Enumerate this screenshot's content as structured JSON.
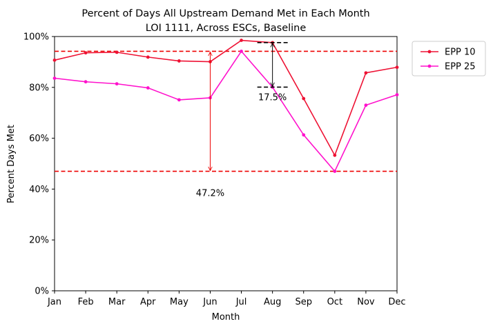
{
  "chart_data": {
    "type": "line",
    "title": "Percent of Days All Upstream Demand Met in Each Month",
    "subtitle": "LOI 1111, Across ESCs, Baseline",
    "xlabel": "Month",
    "ylabel": "Percent Days Met",
    "categories": [
      "Jan",
      "Feb",
      "Mar",
      "Apr",
      "May",
      "Jun",
      "Jul",
      "Aug",
      "Sep",
      "Oct",
      "Nov",
      "Dec"
    ],
    "yticks": [
      "0%",
      "20%",
      "40%",
      "60%",
      "80%",
      "100%"
    ],
    "ylim": [
      0,
      100
    ],
    "grid": false,
    "legend": "outside-upper-right",
    "series": [
      {
        "name": "EPP 10",
        "color": "#ee1133",
        "values": [
          90.7,
          93.6,
          93.8,
          91.9,
          90.4,
          90.1,
          98.5,
          97.6,
          75.6,
          53.3,
          85.7,
          87.9
        ]
      },
      {
        "name": "EPP 25",
        "color": "#ff11cc",
        "values": [
          83.6,
          82.2,
          81.4,
          79.8,
          75.1,
          75.9,
          94.2,
          80.1,
          61.3,
          47.0,
          73.0,
          77.1
        ]
      }
    ],
    "reference_lines": [
      {
        "y": 94.2,
        "color": "#ee0000",
        "style": "dashed"
      },
      {
        "y": 47.0,
        "color": "#ee0000",
        "style": "dashed"
      }
    ],
    "annotations": [
      {
        "text": "47.2%",
        "color": "#ee0000",
        "x": "Jun",
        "from": 94.2,
        "to": 47.0
      },
      {
        "text": "17.5%",
        "color": "#000000",
        "x": "Aug",
        "from": 97.6,
        "to": 80.1
      }
    ]
  }
}
